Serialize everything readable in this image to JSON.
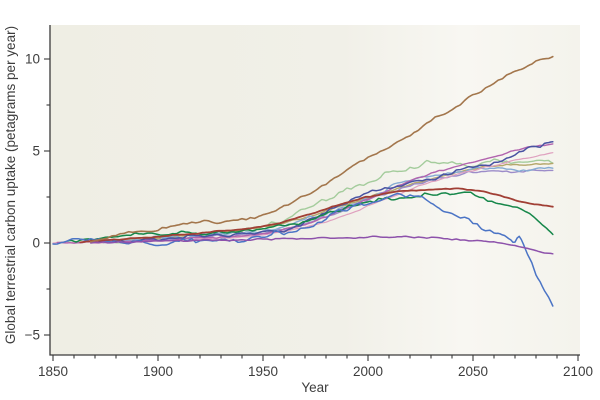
{
  "chart_data": {
    "type": "line",
    "title": "",
    "xlabel": "Year",
    "ylabel": "Global terrestrial carbon uptake (petagrams per year)",
    "xlim": [
      1848.6,
      2101
    ],
    "ylim": [
      -6.1,
      11.85
    ],
    "x_tick_values": [
      1850,
      1900,
      1950,
      2000,
      2050,
      2100
    ],
    "x_tick_labels": [
      "1850",
      "1900",
      "1950",
      "2000",
      "2050",
      "2100"
    ],
    "x_minor_step": 10,
    "y_tick_values": [
      -5,
      0,
      5,
      10
    ],
    "y_tick_labels": [
      "−5",
      "0",
      "5",
      "10"
    ],
    "y_minor_values": [
      -2.5,
      2.5,
      7.5
    ],
    "grid": false,
    "legend": "none",
    "panel_bg_left": "#efeee4",
    "panel_bg_mid": "#f1f0e8",
    "panel_bg_right": "#f8f7f2",
    "panel_bg_end": "#f4f3ec",
    "axis_color": "#3a3a3a",
    "series": [
      {
        "name": "pale-green",
        "color": "#a4cc9c",
        "width": 1.4,
        "noise": 0.16,
        "seed": 22,
        "points": [
          [
            1878,
            0.05
          ],
          [
            1900,
            0.25
          ],
          [
            1925,
            0.55
          ],
          [
            1950,
            0.95
          ],
          [
            1965,
            1.5
          ],
          [
            1975,
            2.1
          ],
          [
            1990,
            2.9
          ],
          [
            2000,
            3.4
          ],
          [
            2010,
            3.8
          ],
          [
            2025,
            4.25
          ],
          [
            2040,
            4.45
          ],
          [
            2050,
            4.2
          ],
          [
            2058,
            4.6
          ],
          [
            2068,
            4.4
          ],
          [
            2078,
            4.6
          ],
          [
            2088,
            4.55
          ]
        ]
      },
      {
        "name": "khaki",
        "color": "#b4a76b",
        "width": 1.4,
        "noise": 0.06,
        "seed": 66,
        "points": [
          [
            1870,
            0.05
          ],
          [
            1900,
            0.3
          ],
          [
            1925,
            0.55
          ],
          [
            1950,
            0.85
          ],
          [
            1975,
            1.55
          ],
          [
            2000,
            2.5
          ],
          [
            2015,
            3.0
          ],
          [
            2030,
            3.5
          ],
          [
            2040,
            3.8
          ],
          [
            2050,
            4.0
          ],
          [
            2060,
            4.15
          ],
          [
            2075,
            4.25
          ],
          [
            2088,
            4.3
          ]
        ]
      },
      {
        "name": "violet",
        "color": "#9c8cc9",
        "width": 1.4,
        "noise": 0.08,
        "seed": 88,
        "points": [
          [
            1872,
            0.0
          ],
          [
            1900,
            0.2
          ],
          [
            1925,
            0.35
          ],
          [
            1950,
            0.55
          ],
          [
            1975,
            1.25
          ],
          [
            2000,
            2.3
          ],
          [
            2015,
            2.9
          ],
          [
            2030,
            3.4
          ],
          [
            2040,
            3.65
          ],
          [
            2050,
            3.85
          ],
          [
            2060,
            3.95
          ],
          [
            2070,
            3.9
          ],
          [
            2088,
            3.95
          ]
        ]
      },
      {
        "name": "steel-blue",
        "color": "#85abd3",
        "width": 1.4,
        "noise": 0.11,
        "seed": 77,
        "points": [
          [
            1872,
            0.05
          ],
          [
            1900,
            0.25
          ],
          [
            1925,
            0.45
          ],
          [
            1950,
            0.7
          ],
          [
            1975,
            1.45
          ],
          [
            2000,
            2.5
          ],
          [
            2010,
            3.0
          ],
          [
            2025,
            3.55
          ],
          [
            2040,
            3.85
          ],
          [
            2050,
            4.0
          ],
          [
            2060,
            4.05
          ],
          [
            2070,
            3.95
          ],
          [
            2080,
            4.1
          ],
          [
            2088,
            4.05
          ]
        ]
      },
      {
        "name": "pink",
        "color": "#dfa0bf",
        "width": 1.2,
        "noise": 0.04,
        "seed": 55,
        "points": [
          [
            1850,
            0.0
          ],
          [
            1900,
            0.1
          ],
          [
            1925,
            0.25
          ],
          [
            1950,
            0.45
          ],
          [
            1975,
            1.0
          ],
          [
            2000,
            2.0
          ],
          [
            2015,
            2.7
          ],
          [
            2030,
            3.3
          ],
          [
            2045,
            3.8
          ],
          [
            2060,
            4.2
          ],
          [
            2075,
            4.6
          ],
          [
            2088,
            4.9
          ]
        ]
      },
      {
        "name": "orchid",
        "color": "#b264ae",
        "width": 1.4,
        "noise": 0.05,
        "seed": 44,
        "points": [
          [
            1852,
            0.0
          ],
          [
            1900,
            0.15
          ],
          [
            1925,
            0.3
          ],
          [
            1950,
            0.5
          ],
          [
            1975,
            1.2
          ],
          [
            1990,
            1.9
          ],
          [
            2000,
            2.4
          ],
          [
            2010,
            2.9
          ],
          [
            2025,
            3.6
          ],
          [
            2040,
            4.1
          ],
          [
            2050,
            4.4
          ],
          [
            2060,
            4.7
          ],
          [
            2070,
            5.0
          ],
          [
            2080,
            5.25
          ],
          [
            2088,
            5.4
          ]
        ]
      },
      {
        "name": "navy",
        "color": "#4953a2",
        "width": 1.5,
        "noise": 0.13,
        "seed": 33,
        "points": [
          [
            1872,
            0.05
          ],
          [
            1900,
            0.2
          ],
          [
            1925,
            0.35
          ],
          [
            1950,
            0.55
          ],
          [
            1965,
            0.9
          ],
          [
            1975,
            1.4
          ],
          [
            1990,
            2.2
          ],
          [
            2000,
            2.7
          ],
          [
            2010,
            2.95
          ],
          [
            2020,
            3.2
          ],
          [
            2030,
            3.45
          ],
          [
            2040,
            3.75
          ],
          [
            2050,
            4.15
          ],
          [
            2060,
            4.4
          ],
          [
            2070,
            4.8
          ],
          [
            2080,
            5.25
          ],
          [
            2088,
            5.45
          ]
        ]
      },
      {
        "name": "dark-green",
        "color": "#16874a",
        "width": 1.5,
        "noise": 0.13,
        "seed": 123,
        "points": [
          [
            1857,
            0.1
          ],
          [
            1875,
            0.3
          ],
          [
            1900,
            0.45
          ],
          [
            1920,
            0.55
          ],
          [
            1935,
            0.6
          ],
          [
            1950,
            0.8
          ],
          [
            1965,
            1.1
          ],
          [
            1975,
            1.4
          ],
          [
            1990,
            1.95
          ],
          [
            2000,
            2.15
          ],
          [
            2010,
            2.4
          ],
          [
            2025,
            2.55
          ],
          [
            2040,
            2.7
          ],
          [
            2050,
            2.6
          ],
          [
            2060,
            2.3
          ],
          [
            2070,
            2.0
          ],
          [
            2078,
            1.4
          ],
          [
            2088,
            0.5
          ]
        ]
      },
      {
        "name": "royal-blue-collapse",
        "color": "#4b74c5",
        "width": 1.5,
        "noise": 0.17,
        "seed": 7,
        "points": [
          [
            1850,
            0.1
          ],
          [
            1875,
            0.15
          ],
          [
            1900,
            -0.05
          ],
          [
            1912,
            0.12
          ],
          [
            1925,
            0.2
          ],
          [
            1940,
            0.15
          ],
          [
            1950,
            0.35
          ],
          [
            1960,
            0.6
          ],
          [
            1975,
            1.1
          ],
          [
            1990,
            1.85
          ],
          [
            2000,
            2.1
          ],
          [
            2008,
            2.35
          ],
          [
            2015,
            2.5
          ],
          [
            2022,
            2.45
          ],
          [
            2030,
            2.15
          ],
          [
            2040,
            1.7
          ],
          [
            2050,
            1.15
          ],
          [
            2058,
            0.8
          ],
          [
            2064,
            0.45
          ],
          [
            2069,
            0.1
          ],
          [
            2072,
            0.35
          ],
          [
            2076,
            -0.6
          ],
          [
            2080,
            -1.7
          ],
          [
            2084,
            -2.7
          ],
          [
            2088,
            -3.45
          ]
        ]
      },
      {
        "name": "brick-red",
        "color": "#a13f35",
        "width": 1.8,
        "noise": 0.03,
        "seed": 99,
        "points": [
          [
            1863,
            0.05
          ],
          [
            1900,
            0.35
          ],
          [
            1925,
            0.6
          ],
          [
            1950,
            0.9
          ],
          [
            1975,
            1.65
          ],
          [
            1990,
            2.2
          ],
          [
            2000,
            2.5
          ],
          [
            2015,
            2.8
          ],
          [
            2030,
            2.9
          ],
          [
            2042,
            2.95
          ],
          [
            2052,
            2.85
          ],
          [
            2062,
            2.6
          ],
          [
            2072,
            2.25
          ],
          [
            2080,
            2.1
          ],
          [
            2088,
            1.95
          ]
        ]
      },
      {
        "name": "purple-flat",
        "color": "#8d52ab",
        "width": 1.5,
        "noise": 0.05,
        "seed": 5,
        "points": [
          [
            1868,
            0.0
          ],
          [
            1900,
            0.1
          ],
          [
            1925,
            0.15
          ],
          [
            1950,
            0.2
          ],
          [
            1975,
            0.27
          ],
          [
            2000,
            0.32
          ],
          [
            2015,
            0.35
          ],
          [
            2030,
            0.28
          ],
          [
            2045,
            0.18
          ],
          [
            2058,
            0.05
          ],
          [
            2068,
            -0.12
          ],
          [
            2078,
            -0.38
          ],
          [
            2088,
            -0.58
          ]
        ]
      },
      {
        "name": "tan-brown-high",
        "color": "#a3764c",
        "width": 1.6,
        "noise": 0.09,
        "seed": 11,
        "points": [
          [
            1868,
            0.05
          ],
          [
            1880,
            0.4
          ],
          [
            1890,
            0.6
          ],
          [
            1900,
            0.75
          ],
          [
            1910,
            1.0
          ],
          [
            1920,
            1.15
          ],
          [
            1930,
            1.1
          ],
          [
            1940,
            1.3
          ],
          [
            1950,
            1.55
          ],
          [
            1960,
            2.0
          ],
          [
            1970,
            2.6
          ],
          [
            1980,
            3.2
          ],
          [
            1990,
            4.0
          ],
          [
            2000,
            4.6
          ],
          [
            2010,
            5.2
          ],
          [
            2020,
            5.9
          ],
          [
            2030,
            6.6
          ],
          [
            2040,
            7.3
          ],
          [
            2050,
            8.0
          ],
          [
            2060,
            8.7
          ],
          [
            2070,
            9.3
          ],
          [
            2080,
            9.8
          ],
          [
            2088,
            10.1
          ]
        ]
      }
    ]
  }
}
